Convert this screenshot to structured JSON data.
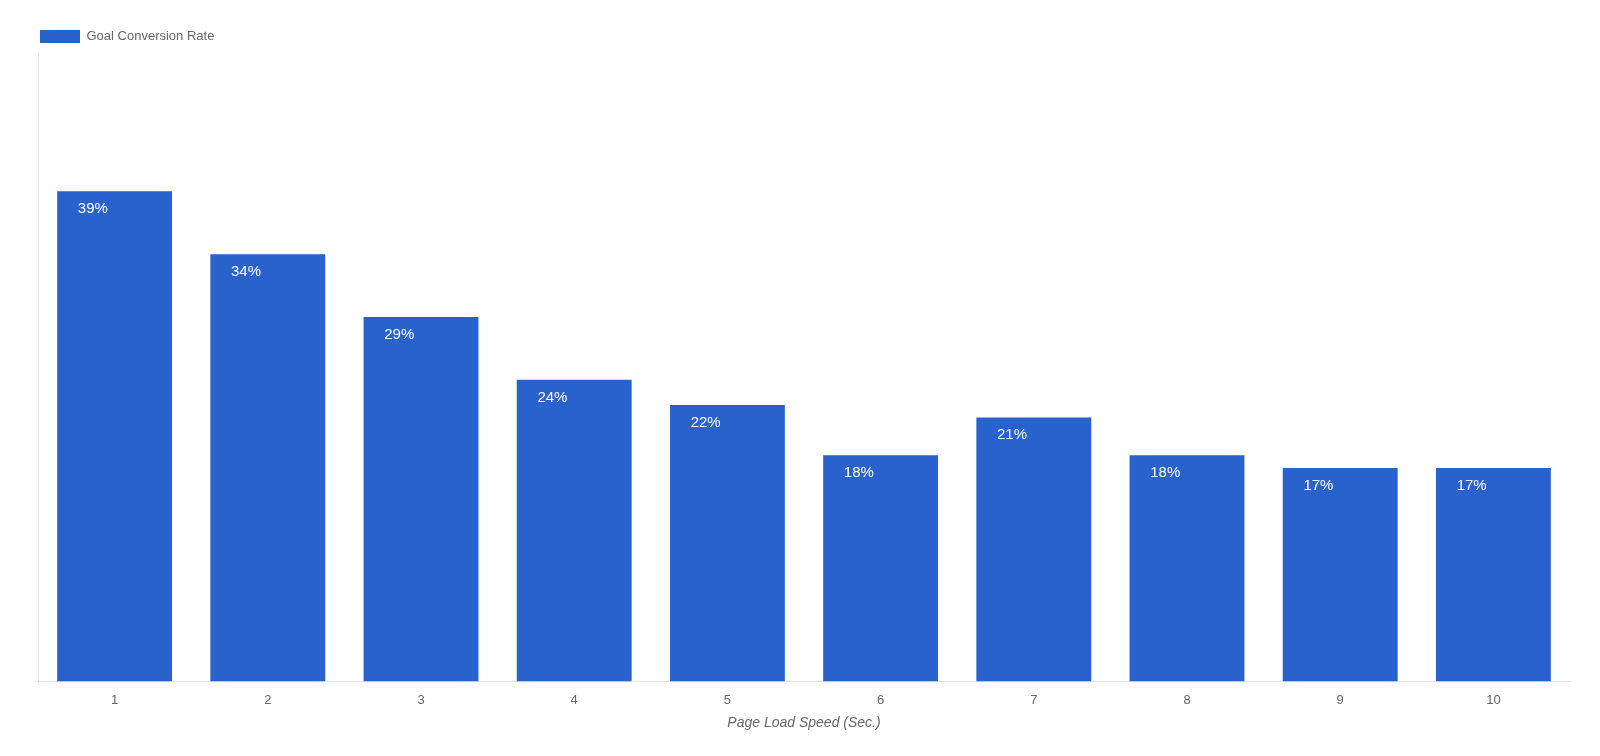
{
  "chart_data": {
    "type": "bar",
    "categories": [
      "1",
      "2",
      "3",
      "4",
      "5",
      "6",
      "7",
      "8",
      "9",
      "10"
    ],
    "series": [
      {
        "name": "Goal Conversion Rate",
        "color": "#2962CC",
        "values": [
          39,
          34,
          29,
          24,
          22,
          18,
          21,
          18,
          17,
          17
        ],
        "value_labels": [
          "39%",
          "34%",
          "29%",
          "24%",
          "22%",
          "18%",
          "21%",
          "18%",
          "17%",
          "17%"
        ]
      }
    ],
    "xlabel": "Page Load Speed (Sec.)",
    "ylim": [
      0,
      50
    ],
    "yticks": [],
    "data_labels": true,
    "tick_labels": "x",
    "grid": false,
    "legend": "upper left"
  }
}
